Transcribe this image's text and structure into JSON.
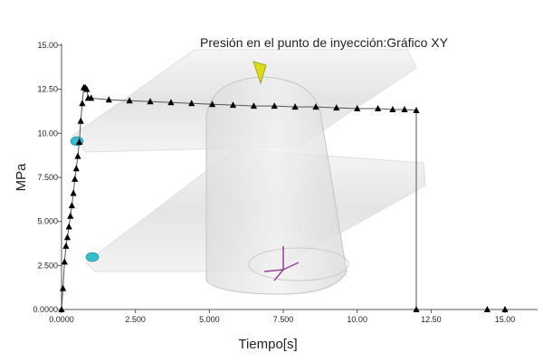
{
  "chart_data": {
    "type": "line",
    "title": "Presión en el punto de inyección:Gráfico XY",
    "xlabel": "Tiempo[s]",
    "ylabel": "MPa",
    "xlim": [
      0,
      16
    ],
    "ylim": [
      0,
      15
    ],
    "x_ticks": [
      "0.0000",
      "2.500",
      "5.000",
      "7.500",
      "10.00",
      "12.50",
      "15.00"
    ],
    "y_ticks": [
      "0.0000",
      "2.500",
      "5.000",
      "7.500",
      "10.00",
      "12.50",
      "15.00"
    ],
    "grid": false,
    "series": [
      {
        "name": "",
        "color": "#000000",
        "marker": "triangle",
        "points": [
          [
            0.0,
            0.0
          ],
          [
            0.05,
            1.2
          ],
          [
            0.1,
            2.7
          ],
          [
            0.15,
            3.6
          ],
          [
            0.2,
            4.1
          ],
          [
            0.25,
            4.7
          ],
          [
            0.3,
            5.3
          ],
          [
            0.35,
            5.9
          ],
          [
            0.4,
            6.6
          ],
          [
            0.45,
            7.4
          ],
          [
            0.5,
            8.0
          ],
          [
            0.55,
            8.7
          ],
          [
            0.6,
            9.5
          ],
          [
            0.65,
            10.7
          ],
          [
            0.7,
            11.7
          ],
          [
            0.75,
            12.6
          ],
          [
            0.8,
            12.6
          ],
          [
            0.85,
            12.5
          ],
          [
            0.9,
            12.0
          ],
          [
            1.0,
            12.0
          ],
          [
            1.6,
            11.9
          ],
          [
            2.3,
            11.85
          ],
          [
            3.0,
            11.8
          ],
          [
            3.7,
            11.75
          ],
          [
            4.4,
            11.7
          ],
          [
            5.1,
            11.65
          ],
          [
            5.8,
            11.6
          ],
          [
            6.5,
            11.55
          ],
          [
            7.2,
            11.55
          ],
          [
            7.9,
            11.5
          ],
          [
            8.6,
            11.5
          ],
          [
            9.3,
            11.45
          ],
          [
            10.0,
            11.4
          ],
          [
            10.7,
            11.4
          ],
          [
            11.2,
            11.35
          ],
          [
            11.6,
            11.35
          ],
          [
            12.0,
            11.3
          ],
          [
            12.0,
            0.0
          ],
          [
            14.4,
            0.0
          ],
          [
            15.0,
            0.0
          ]
        ]
      }
    ]
  }
}
